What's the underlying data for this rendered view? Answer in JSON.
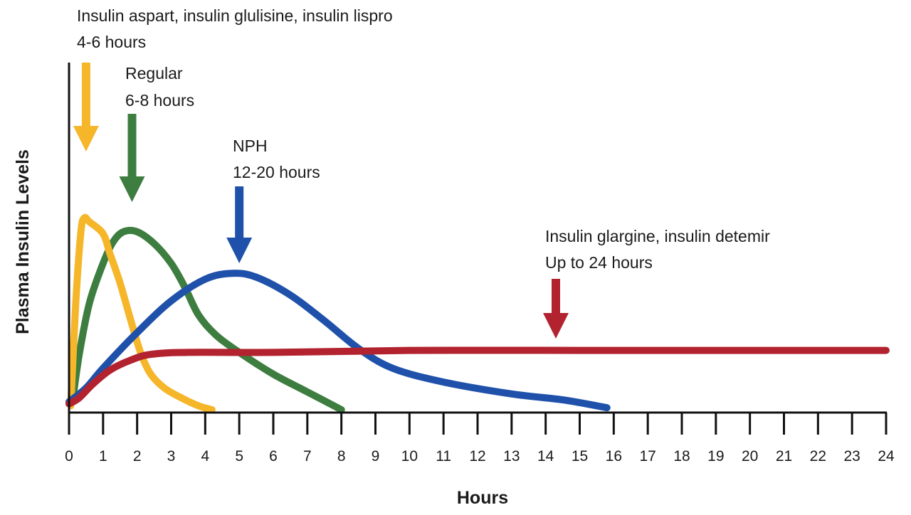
{
  "chart_data": {
    "type": "line",
    "title": "",
    "xlabel": "Hours",
    "ylabel": "Plasma Insulin Levels",
    "xlim": [
      0,
      24
    ],
    "ylim": [
      0,
      1
    ],
    "x_ticks": [
      "0",
      "1",
      "2",
      "3",
      "4",
      "5",
      "6",
      "7",
      "8",
      "9",
      "10",
      "11",
      "12",
      "13",
      "14",
      "15",
      "16",
      "17",
      "18",
      "19",
      "20",
      "21",
      "22",
      "23",
      "24"
    ],
    "grid": false,
    "legend": "none",
    "series": [
      {
        "color": "#f6b62a",
        "label_lines": [
          "Insulin aspart, insulin glulisine, insulin lispro",
          "4-6 hours"
        ],
        "arrow_x": 0.5,
        "points": [
          [
            0.05,
            0.02
          ],
          [
            0.2,
            0.55
          ],
          [
            0.35,
            0.9
          ],
          [
            0.45,
            0.97
          ],
          [
            0.6,
            0.95
          ],
          [
            1.0,
            0.89
          ],
          [
            1.2,
            0.79
          ],
          [
            1.5,
            0.64
          ],
          [
            1.8,
            0.46
          ],
          [
            2.1,
            0.29
          ],
          [
            2.4,
            0.18
          ],
          [
            2.8,
            0.11
          ],
          [
            3.3,
            0.06
          ],
          [
            3.8,
            0.02
          ],
          [
            4.2,
            0.0
          ]
        ]
      },
      {
        "color": "#3d7d3f",
        "label_lines": [
          "Regular",
          "6-8 hours"
        ],
        "arrow_x": 1.85,
        "points": [
          [
            0.1,
            0.04
          ],
          [
            0.3,
            0.28
          ],
          [
            0.6,
            0.54
          ],
          [
            1.0,
            0.74
          ],
          [
            1.3,
            0.85
          ],
          [
            1.6,
            0.9
          ],
          [
            2.0,
            0.9
          ],
          [
            2.5,
            0.84
          ],
          [
            3.0,
            0.74
          ],
          [
            3.4,
            0.62
          ],
          [
            3.8,
            0.48
          ],
          [
            4.3,
            0.38
          ],
          [
            5.0,
            0.29
          ],
          [
            6.0,
            0.18
          ],
          [
            7.0,
            0.09
          ],
          [
            8.0,
            0.0
          ]
        ]
      },
      {
        "color": "#1f51aa",
        "label_lines": [
          "NPH",
          "12-20 hours"
        ],
        "arrow_x": 5.0,
        "points": [
          [
            0.0,
            0.04
          ],
          [
            0.5,
            0.11
          ],
          [
            1.0,
            0.21
          ],
          [
            2.0,
            0.39
          ],
          [
            3.0,
            0.55
          ],
          [
            4.0,
            0.66
          ],
          [
            4.8,
            0.69
          ],
          [
            5.5,
            0.67
          ],
          [
            6.5,
            0.58
          ],
          [
            7.5,
            0.45
          ],
          [
            8.5,
            0.31
          ],
          [
            9.5,
            0.21
          ],
          [
            11.0,
            0.14
          ],
          [
            13.0,
            0.08
          ],
          [
            14.5,
            0.05
          ],
          [
            15.8,
            0.01
          ]
        ]
      },
      {
        "color": "#b2232f",
        "label_lines": [
          "Insulin glargine, insulin detemir",
          "Up to 24 hours"
        ],
        "arrow_x": 14.3,
        "points": [
          [
            0.0,
            0.03
          ],
          [
            0.3,
            0.06
          ],
          [
            0.7,
            0.13
          ],
          [
            1.2,
            0.2
          ],
          [
            1.8,
            0.25
          ],
          [
            2.4,
            0.28
          ],
          [
            3.5,
            0.29
          ],
          [
            6.0,
            0.29
          ],
          [
            10.0,
            0.3
          ],
          [
            15.0,
            0.3
          ],
          [
            20.0,
            0.3
          ],
          [
            24.0,
            0.3
          ]
        ]
      }
    ]
  }
}
